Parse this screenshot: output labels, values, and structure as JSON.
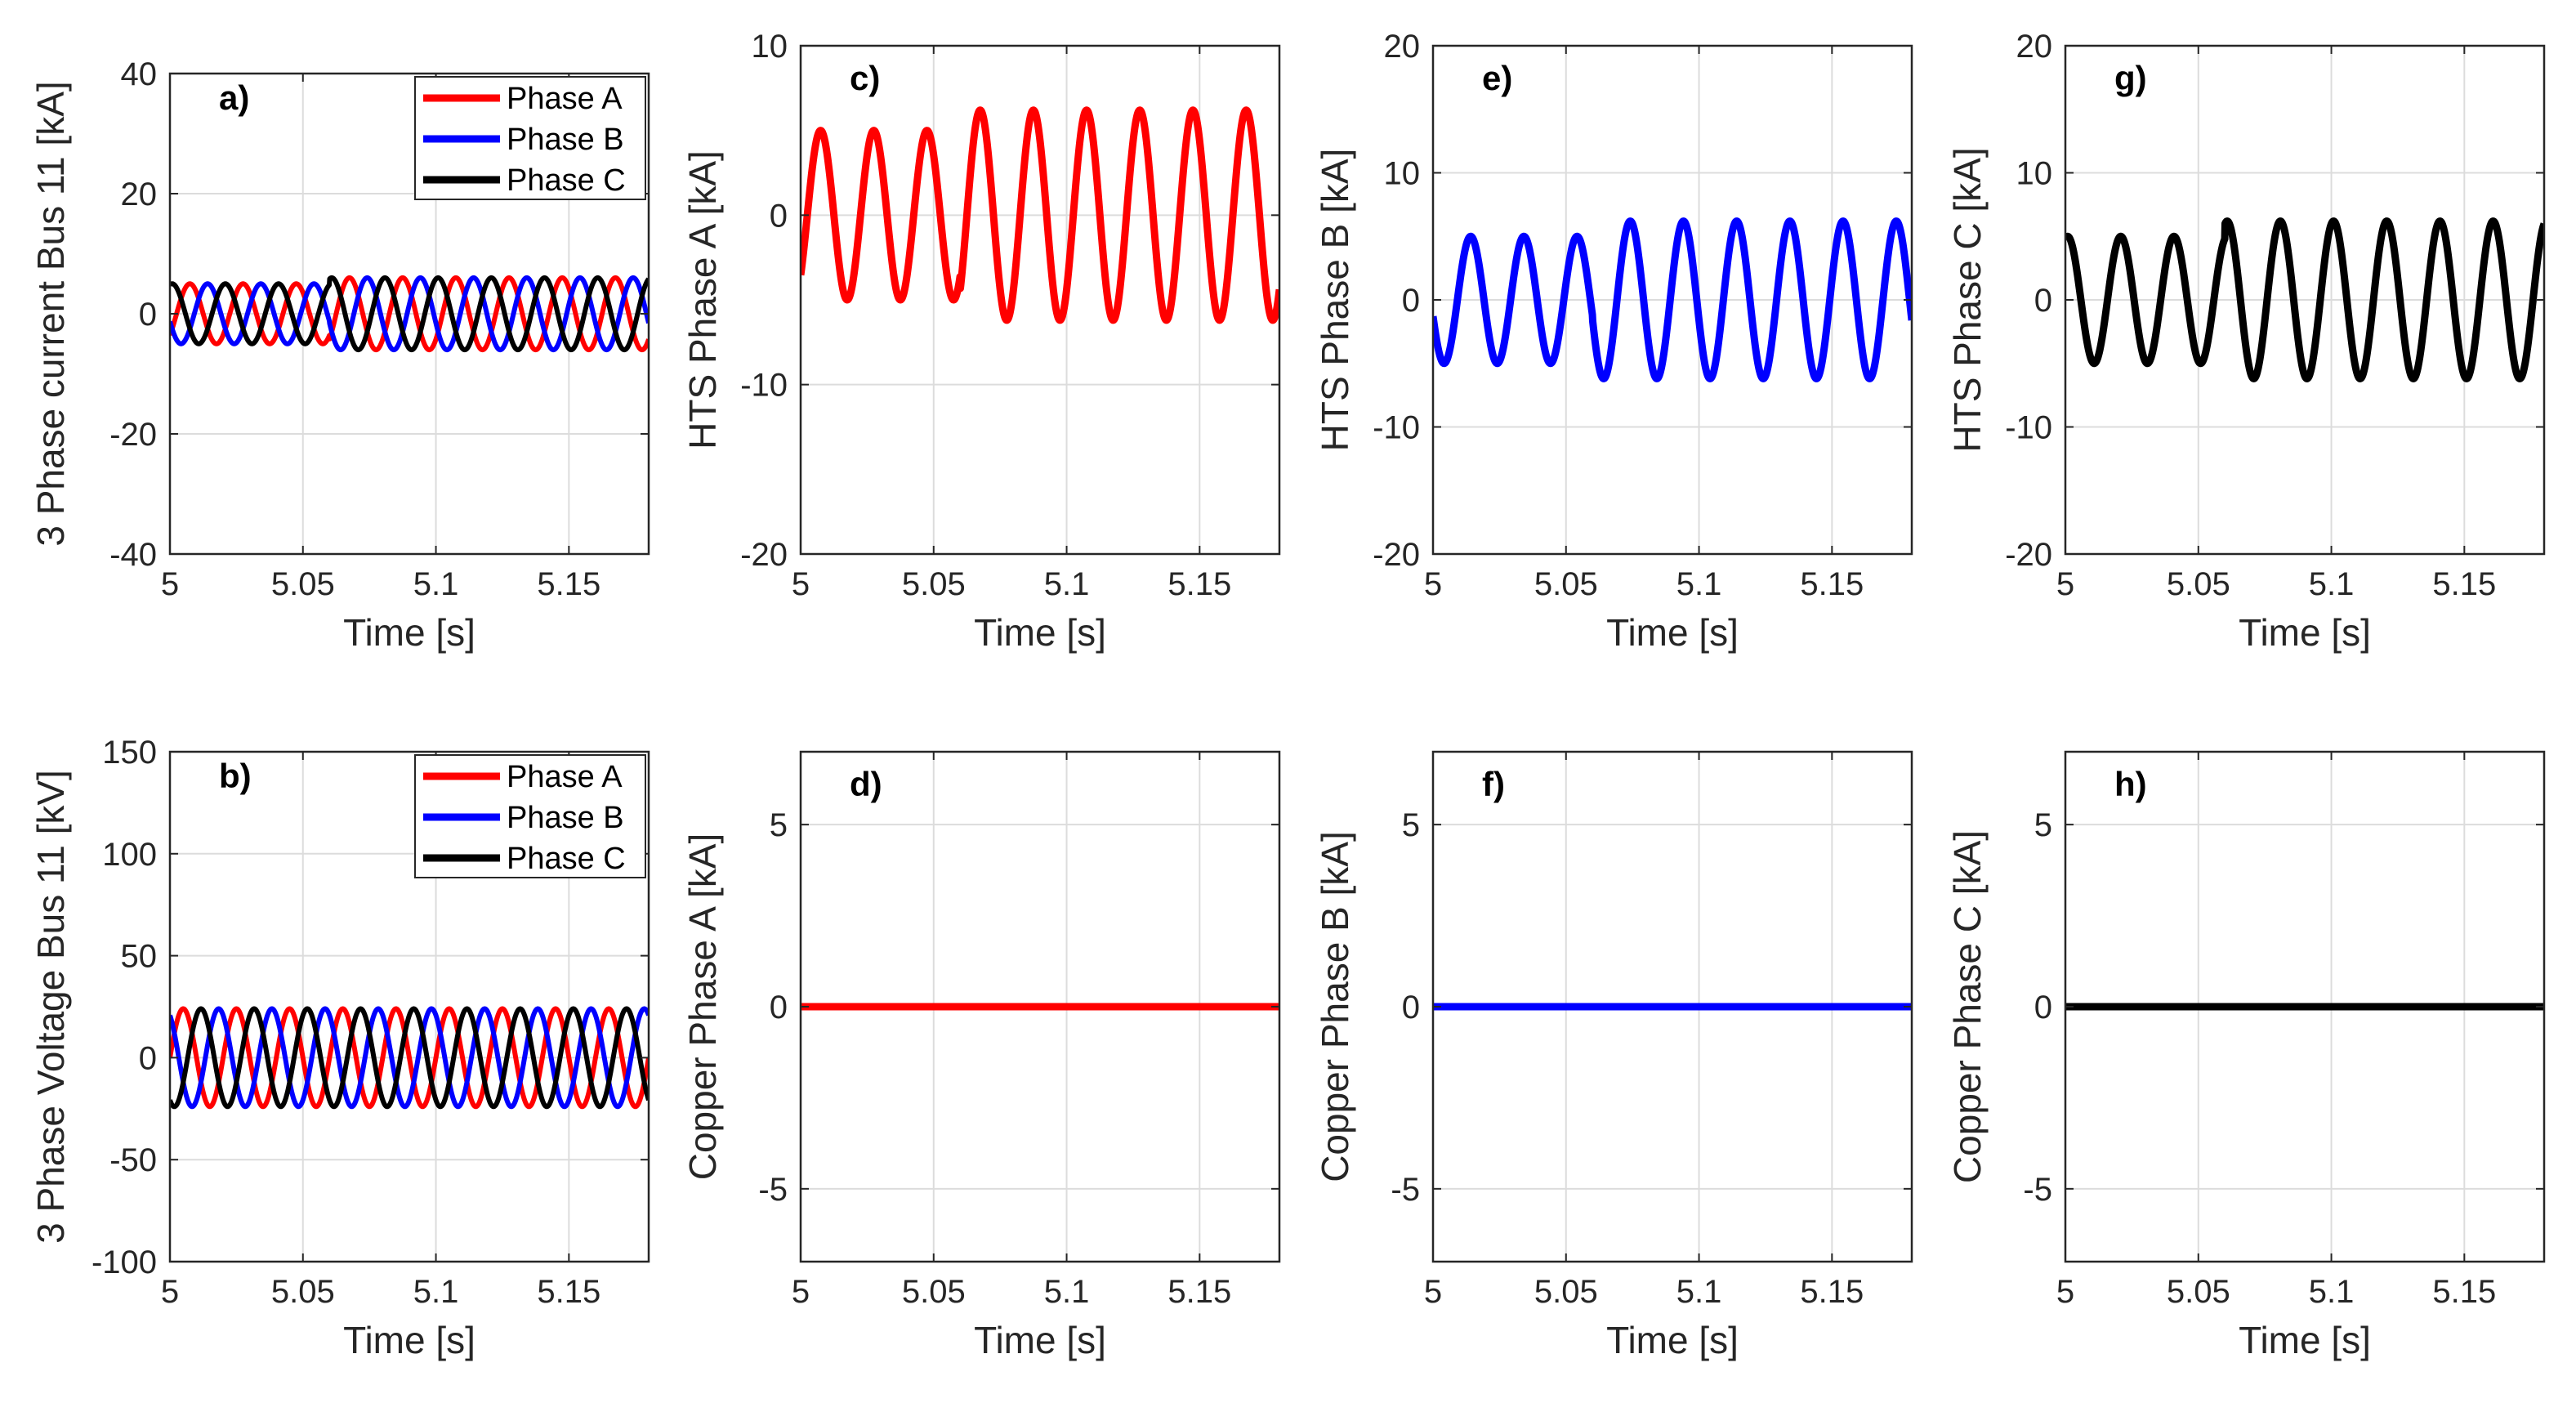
{
  "colors": {
    "phase_a": "#ff0000",
    "phase_b": "#0000ff",
    "phase_c": "#000000"
  },
  "chart_data": [
    {
      "id": "a",
      "type": "line",
      "panel_label": "a)",
      "xlabel": "Time [s]",
      "ylabel": "3 Phase current Bus 11 [kA]",
      "xlim": [
        5,
        5.18
      ],
      "ylim": [
        -40,
        40
      ],
      "xticks": [
        5,
        5.05,
        5.1,
        5.15
      ],
      "xtick_labels": [
        "5",
        "5.05",
        "5.1",
        "5.15"
      ],
      "yticks": [
        -40,
        -20,
        0,
        20,
        40
      ],
      "ytick_labels": [
        "-40",
        "-20",
        "0",
        "20",
        "40"
      ],
      "grid": true,
      "legend": "top-right",
      "legend_entries": [
        "Phase A",
        "Phase B",
        "Phase C"
      ],
      "series": [
        {
          "name": "Phase A",
          "color": "#ff0000",
          "waveform": "sine",
          "frequency_hz": 50,
          "amplitude": 5,
          "amplitude_after": 6,
          "step_time": 5.06,
          "phase_deg": -45
        },
        {
          "name": "Phase B",
          "color": "#0000ff",
          "waveform": "sine",
          "frequency_hz": 50,
          "amplitude": 5,
          "amplitude_after": 6,
          "step_time": 5.06,
          "phase_deg": -165
        },
        {
          "name": "Phase C",
          "color": "#000000",
          "waveform": "sine",
          "frequency_hz": 50,
          "amplitude": 5,
          "amplitude_after": 6,
          "step_time": 5.06,
          "phase_deg": 75
        }
      ]
    },
    {
      "id": "b",
      "type": "line",
      "panel_label": "b)",
      "xlabel": "Time [s]",
      "ylabel": "3 Phase Voltage  Bus 11 [kV]",
      "xlim": [
        5,
        5.18
      ],
      "ylim": [
        -100,
        150
      ],
      "xticks": [
        5,
        5.05,
        5.1,
        5.15
      ],
      "xtick_labels": [
        "5",
        "5.05",
        "5.1",
        "5.15"
      ],
      "yticks": [
        -100,
        -50,
        0,
        50,
        100,
        150
      ],
      "ytick_labels": [
        "-100",
        "-50",
        "0",
        "50",
        "100",
        "150"
      ],
      "grid": true,
      "legend": "top-right",
      "legend_entries": [
        "Phase A",
        "Phase B",
        "Phase C"
      ],
      "series": [
        {
          "name": "Phase A",
          "color": "#ff0000",
          "waveform": "sine",
          "frequency_hz": 50,
          "amplitude": 24,
          "amplitude_after": 24,
          "step_time": 5.06,
          "phase_deg": 0
        },
        {
          "name": "Phase B",
          "color": "#0000ff",
          "waveform": "sine",
          "frequency_hz": 50,
          "amplitude": 24,
          "amplitude_after": 24,
          "step_time": 5.06,
          "phase_deg": 120
        },
        {
          "name": "Phase C",
          "color": "#000000",
          "waveform": "sine",
          "frequency_hz": 50,
          "amplitude": 24,
          "amplitude_after": 24,
          "step_time": 5.06,
          "phase_deg": -120
        }
      ]
    },
    {
      "id": "c",
      "type": "line",
      "panel_label": "c)",
      "xlabel": "Time [s]",
      "ylabel": "HTS Phase A [kA]",
      "xlim": [
        5,
        5.18
      ],
      "ylim": [
        -20,
        10
      ],
      "xticks": [
        5,
        5.05,
        5.1,
        5.15
      ],
      "xtick_labels": [
        "5",
        "5.05",
        "5.1",
        "5.15"
      ],
      "yticks": [
        -20,
        -10,
        0,
        10
      ],
      "ytick_labels": [
        "-20",
        "-10",
        "0",
        "10"
      ],
      "grid": true,
      "series": [
        {
          "name": "",
          "color": "#ff0000",
          "waveform": "sine",
          "frequency_hz": 50,
          "amplitude": 5,
          "amplitude_after": 6.2,
          "step_time": 5.06,
          "phase_deg": -45
        }
      ]
    },
    {
      "id": "d",
      "type": "line",
      "panel_label": "d)",
      "xlabel": "Time [s]",
      "ylabel": "Copper Phase A [kA]",
      "xlim": [
        5,
        5.18
      ],
      "ylim": [
        -7,
        7
      ],
      "xticks": [
        5,
        5.05,
        5.1,
        5.15
      ],
      "xtick_labels": [
        "5",
        "5.05",
        "5.1",
        "5.15"
      ],
      "yticks": [
        -5,
        0,
        5
      ],
      "ytick_labels": [
        "-5",
        "0",
        "5"
      ],
      "grid": true,
      "series": [
        {
          "name": "",
          "color": "#ff0000",
          "waveform": "constant",
          "value": 0
        }
      ]
    },
    {
      "id": "e",
      "type": "line",
      "panel_label": "e)",
      "xlabel": "Time [s]",
      "ylabel": "HTS Phase B [kA]",
      "xlim": [
        5,
        5.18
      ],
      "ylim": [
        -20,
        20
      ],
      "xticks": [
        5,
        5.05,
        5.1,
        5.15
      ],
      "xtick_labels": [
        "5",
        "5.05",
        "5.1",
        "5.15"
      ],
      "yticks": [
        -20,
        -10,
        0,
        10,
        20
      ],
      "ytick_labels": [
        "-20",
        "-10",
        "0",
        "10",
        "20"
      ],
      "grid": true,
      "series": [
        {
          "name": "",
          "color": "#0000ff",
          "waveform": "sine",
          "frequency_hz": 50,
          "amplitude": 5,
          "amplitude_after": 6.2,
          "step_time": 5.06,
          "phase_deg": -165
        }
      ]
    },
    {
      "id": "f",
      "type": "line",
      "panel_label": "f)",
      "xlabel": "Time [s]",
      "ylabel": "Copper Phase B [kA]",
      "xlim": [
        5,
        5.18
      ],
      "ylim": [
        -7,
        7
      ],
      "xticks": [
        5,
        5.05,
        5.1,
        5.15
      ],
      "xtick_labels": [
        "5",
        "5.05",
        "5.1",
        "5.15"
      ],
      "yticks": [
        -5,
        0,
        5
      ],
      "ytick_labels": [
        "-5",
        "0",
        "5"
      ],
      "grid": true,
      "series": [
        {
          "name": "",
          "color": "#0000ff",
          "waveform": "constant",
          "value": 0
        }
      ]
    },
    {
      "id": "g",
      "type": "line",
      "panel_label": "g)",
      "xlabel": "Time [s]",
      "ylabel": "HTS Phase C [kA]",
      "xlim": [
        5,
        5.18
      ],
      "ylim": [
        -20,
        20
      ],
      "xticks": [
        5,
        5.05,
        5.1,
        5.15
      ],
      "xtick_labels": [
        "5",
        "5.05",
        "5.1",
        "5.15"
      ],
      "yticks": [
        -20,
        -10,
        0,
        10,
        20
      ],
      "ytick_labels": [
        "-20",
        "-10",
        "0",
        "10",
        "20"
      ],
      "grid": true,
      "series": [
        {
          "name": "",
          "color": "#000000",
          "waveform": "sine",
          "frequency_hz": 50,
          "amplitude": 5,
          "amplitude_after": 6.2,
          "step_time": 5.06,
          "phase_deg": 75
        }
      ]
    },
    {
      "id": "h",
      "type": "line",
      "panel_label": "h)",
      "xlabel": "Time [s]",
      "ylabel": "Copper Phase C [kA]",
      "xlim": [
        5,
        5.18
      ],
      "ylim": [
        -7,
        7
      ],
      "xticks": [
        5,
        5.05,
        5.1,
        5.15
      ],
      "xtick_labels": [
        "5",
        "5.05",
        "5.1",
        "5.15"
      ],
      "yticks": [
        -5,
        0,
        5
      ],
      "ytick_labels": [
        "-5",
        "0",
        "5"
      ],
      "grid": true,
      "series": [
        {
          "name": "",
          "color": "#000000",
          "waveform": "constant",
          "value": 0
        }
      ]
    }
  ]
}
